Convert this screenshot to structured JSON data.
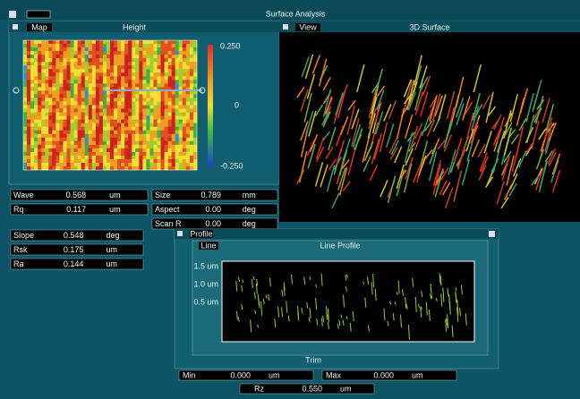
{
  "window": {
    "title": "Surface Analysis"
  },
  "map_panel": {
    "title": "Map",
    "label": "Height",
    "colorbar": {
      "top": "0.250",
      "middle": "0",
      "bottom": "-0.250"
    }
  },
  "view_panel": {
    "title": "View",
    "label": "3D Surface"
  },
  "fields_left": [
    [
      "Wave",
      "0.568",
      "um"
    ],
    [
      "Rq",
      "0.117",
      "um"
    ]
  ],
  "fields_mid": [
    [
      "Size",
      "0.789",
      "mm"
    ],
    [
      "Aspect",
      "0.00",
      "deg"
    ],
    [
      "Scan R",
      "0.00",
      "deg"
    ]
  ],
  "fields_left2": [
    [
      "Slope",
      "0.548",
      "deg"
    ],
    [
      "Rsk",
      "0.175",
      "um"
    ],
    [
      "Ra",
      "0.144",
      "um"
    ]
  ],
  "profile_panel": {
    "title": "Profile",
    "tab": "Line",
    "subtitle": "Line Profile",
    "yticks": [
      "1.5 um",
      "1.0 um",
      "0.5 um"
    ],
    "xlabel": "Trim"
  },
  "status_fields": [
    [
      "Min",
      "0.000",
      "um"
    ],
    [
      "Max",
      "0.000",
      "um"
    ]
  ],
  "status_bottom": [
    "Rz",
    "0.550",
    "um"
  ]
}
